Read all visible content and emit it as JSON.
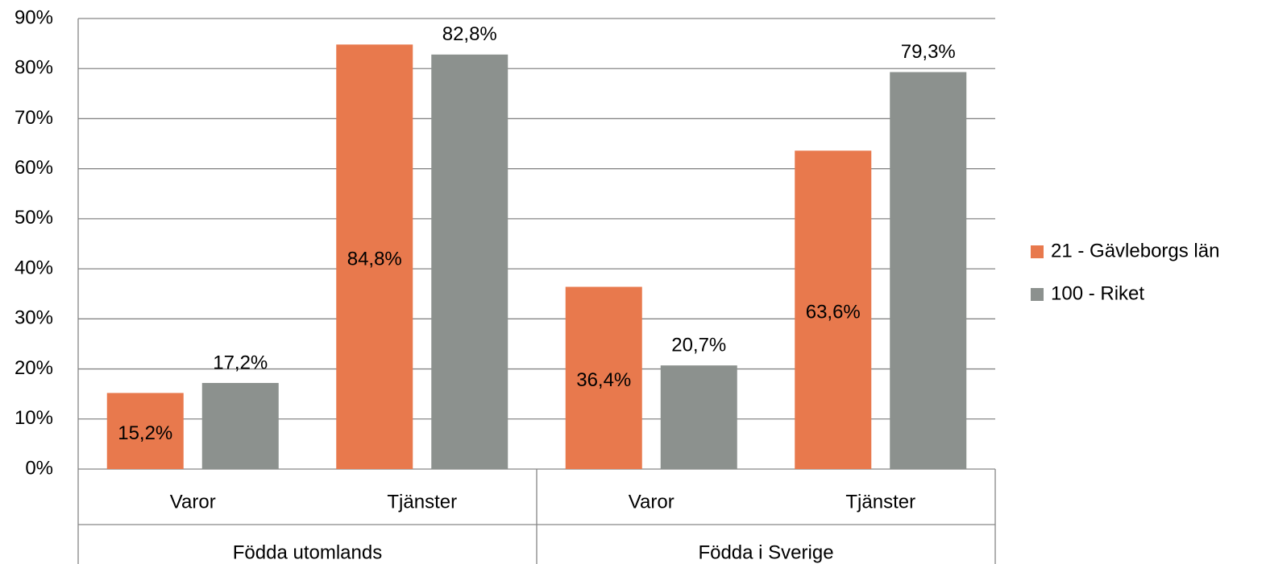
{
  "chart_data": {
    "type": "bar",
    "categories": [
      "Varor",
      "Tjänster",
      "Varor",
      "Tjänster"
    ],
    "groups": [
      "Födda utomlands",
      "Födda i Sverige"
    ],
    "series": [
      {
        "name": "21 - Gävleborgs län",
        "color": "#e8794d",
        "values": [
          15.2,
          84.8,
          36.4,
          63.6
        ],
        "value_labels": [
          "15,2%",
          "84,8%",
          "36,4%",
          "63,6%"
        ],
        "label_position": "center"
      },
      {
        "name": "100 - Riket",
        "color": "#8c918e",
        "values": [
          17.2,
          82.8,
          20.7,
          79.3
        ],
        "value_labels": [
          "17,2%",
          "82,8%",
          "20,7%",
          "79,3%"
        ],
        "label_position": "outside"
      }
    ],
    "ylim": [
      0,
      90
    ],
    "yticks": [
      {
        "value": 0,
        "label": "0%"
      },
      {
        "value": 10,
        "label": "10%"
      },
      {
        "value": 20,
        "label": "20%"
      },
      {
        "value": 30,
        "label": "30%"
      },
      {
        "value": 40,
        "label": "40%"
      },
      {
        "value": 50,
        "label": "50%"
      },
      {
        "value": 60,
        "label": "60%"
      },
      {
        "value": 70,
        "label": "70%"
      },
      {
        "value": 80,
        "label": "80%"
      },
      {
        "value": 90,
        "label": "90%"
      }
    ],
    "grid": true,
    "legend": "right"
  }
}
